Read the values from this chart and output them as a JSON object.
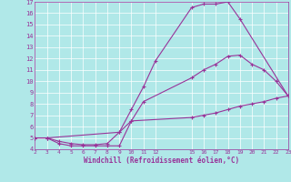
{
  "bg_color": "#b0e8e8",
  "line_color": "#993399",
  "xlim": [
    2,
    23
  ],
  "ylim": [
    4,
    17
  ],
  "xticks": [
    2,
    3,
    4,
    5,
    6,
    7,
    8,
    9,
    10,
    11,
    12,
    15,
    16,
    17,
    18,
    19,
    20,
    21,
    22,
    23
  ],
  "yticks": [
    4,
    5,
    6,
    7,
    8,
    9,
    10,
    11,
    12,
    13,
    14,
    15,
    16,
    17
  ],
  "xlabel": "Windchill (Refroidissement éolien,°C)",
  "line1_x": [
    2,
    3,
    4,
    5,
    6,
    7,
    8,
    9,
    10,
    11,
    12,
    15,
    16,
    17,
    18,
    19,
    23
  ],
  "line1_y": [
    5.0,
    5.0,
    4.7,
    4.5,
    4.4,
    4.4,
    4.5,
    5.5,
    7.5,
    9.5,
    11.8,
    16.5,
    16.8,
    16.8,
    17.0,
    15.5,
    8.7
  ],
  "line2_x": [
    2,
    3,
    4,
    5,
    6,
    7,
    8,
    9,
    10,
    11,
    15,
    16,
    17,
    18,
    19,
    20,
    21,
    22,
    23
  ],
  "line2_y": [
    5.0,
    5.0,
    4.5,
    4.3,
    4.3,
    4.3,
    4.3,
    4.3,
    6.5,
    8.2,
    10.3,
    11.0,
    11.5,
    12.2,
    12.3,
    11.5,
    11.0,
    10.0,
    8.7
  ],
  "line3_x": [
    2,
    3,
    9,
    10,
    15,
    16,
    17,
    18,
    19,
    20,
    21,
    22,
    23
  ],
  "line3_y": [
    5.0,
    5.0,
    5.5,
    6.5,
    6.8,
    7.0,
    7.2,
    7.5,
    7.8,
    8.0,
    8.2,
    8.5,
    8.7
  ]
}
